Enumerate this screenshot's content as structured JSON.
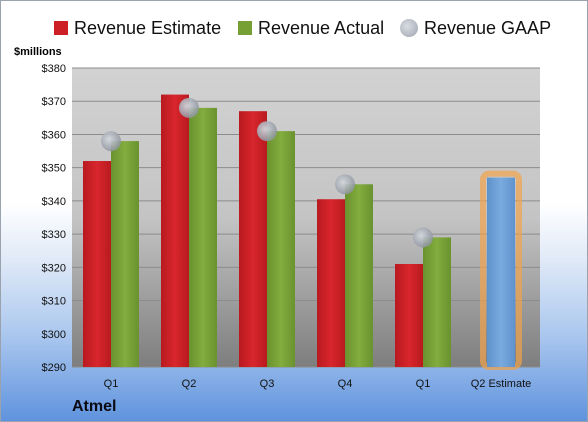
{
  "chart_data": {
    "type": "bar",
    "company": "Atmel",
    "units_label": "$millions",
    "categories": [
      "Q1",
      "Q2",
      "Q3",
      "Q4",
      "Q1",
      "Q2 Estimate"
    ],
    "series": [
      {
        "name": "Revenue Estimate",
        "color": "#cc2026",
        "values": [
          352,
          372,
          367,
          340.5,
          321,
          null
        ]
      },
      {
        "name": "Revenue Actual",
        "color": "#76a034",
        "values": [
          358,
          368,
          361,
          345,
          329,
          347
        ]
      },
      {
        "name": "Revenue GAAP",
        "color": "#b4b9c2",
        "values": [
          358,
          368,
          361,
          345,
          329,
          null
        ]
      }
    ],
    "estimate_bar": {
      "category": "Q2 Estimate",
      "color": "#6e9fd5",
      "glow": "#f2a34a"
    },
    "yticks": [
      "$290",
      "$300",
      "$310",
      "$320",
      "$330",
      "$340",
      "$350",
      "$360",
      "$370",
      "$380"
    ],
    "ylim": [
      290,
      380
    ],
    "grid": true,
    "legend_position": "top"
  }
}
